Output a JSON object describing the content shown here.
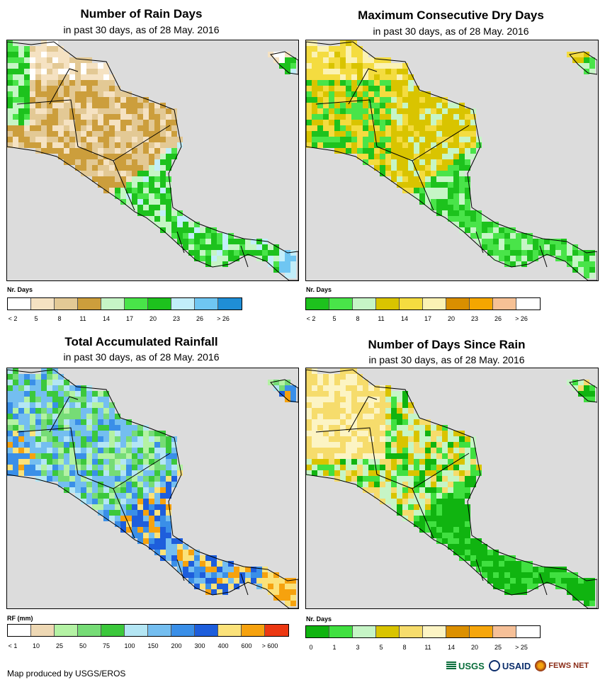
{
  "panels": [
    {
      "title": "Number of Rain Days",
      "subtitle": "in past 30 days, as of 28 May. 2016",
      "legend_title": "Nr. Days",
      "colors": [
        "#ffffff",
        "#f5e2c2",
        "#e3c995",
        "#cc9e3c",
        "#c6f5c6",
        "#49e449",
        "#1dc21d",
        "#c2eefa",
        "#6fc6f2",
        "#1f8ed6"
      ],
      "ticks": [
        "< 2",
        "5",
        "8",
        "11",
        "14",
        "17",
        "20",
        "23",
        "26",
        "> 26"
      ],
      "scheme": "raindays"
    },
    {
      "title": "Maximum Consecutive Dry Days",
      "subtitle": "in past 30 days, as of 28 May. 2016",
      "legend_title": "Nr. Days",
      "colors": [
        "#1dc21d",
        "#49e449",
        "#c6f5c6",
        "#d9c400",
        "#f4dc40",
        "#fbf2b4",
        "#d98f00",
        "#f4a600",
        "#f6c195",
        "#ffffff"
      ],
      "ticks": [
        "< 2",
        "5",
        "8",
        "11",
        "14",
        "17",
        "20",
        "23",
        "26",
        "> 26"
      ],
      "scheme": "drydays"
    },
    {
      "title": "Total Accumulated Rainfall",
      "subtitle": "in past 30 days, as of 28 May. 2016",
      "legend_title": "RF (mm)",
      "colors": [
        "#ffffff",
        "#eed8b4",
        "#b4f2a4",
        "#76dc76",
        "#3cc83c",
        "#b4e6f4",
        "#74bef0",
        "#3a8fe8",
        "#1e5edc",
        "#fbe27a",
        "#f6a20e",
        "#ec3812"
      ],
      "ticks": [
        "< 1",
        "10",
        "25",
        "50",
        "75",
        "100",
        "150",
        "200",
        "300",
        "400",
        "600",
        "> 600"
      ],
      "scheme": "rainfall"
    },
    {
      "title": "Number of Days Since Rain",
      "subtitle": "in past 30 days, as of 28 May. 2016",
      "legend_title": "Nr. Days",
      "colors": [
        "#10b410",
        "#40e040",
        "#c6f5c6",
        "#d9c400",
        "#f6dc6c",
        "#fcf4c4",
        "#dc9000",
        "#f6a60c",
        "#f6c098",
        "#ffffff"
      ],
      "ticks": [
        "0",
        "1",
        "3",
        "5",
        "8",
        "11",
        "14",
        "20",
        "25",
        "> 25"
      ],
      "scheme": "sincerain"
    }
  ],
  "footer": "Map produced by USGS/EROS",
  "logos": {
    "usgs": "USGS",
    "usaid": "USAID",
    "fews": "FEWS NET"
  }
}
